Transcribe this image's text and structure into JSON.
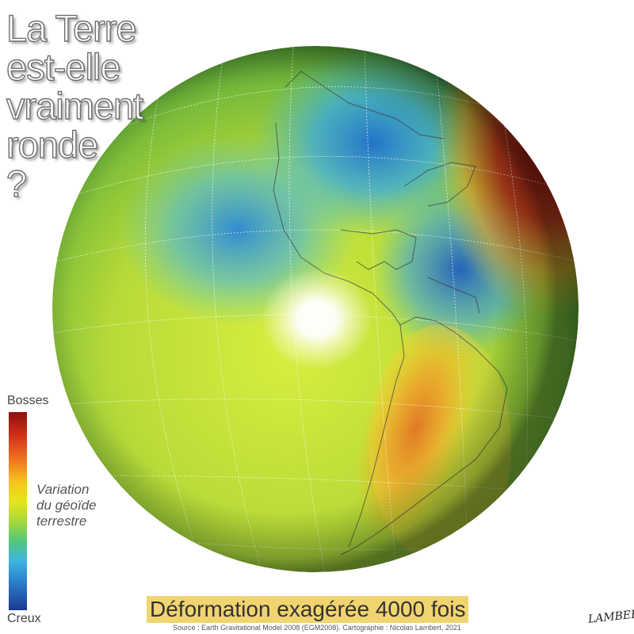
{
  "title": {
    "lines": [
      "La Terre",
      "est-elle",
      "vraiment",
      "ronde",
      "?"
    ]
  },
  "legend": {
    "top_label": "Bosses",
    "bottom_label": "Creux",
    "caption_lines": [
      "Variation",
      "du géoïde",
      "terrestre"
    ],
    "ramp": [
      "#8b1010",
      "#d43018",
      "#f07a20",
      "#f5c41c",
      "#e6e61a",
      "#a8d838",
      "#52c87a",
      "#3eb6e0",
      "#2a78c8",
      "#1a3a8c"
    ]
  },
  "banner": {
    "text": "Déformation exagérée 4000 fois",
    "color": "#f0d470"
  },
  "source": "Source : Earth Gravitational Model 2008 (EGM2008). Cartographie : Nicolas Lambert, 2021",
  "signature": "LAMBERT"
}
